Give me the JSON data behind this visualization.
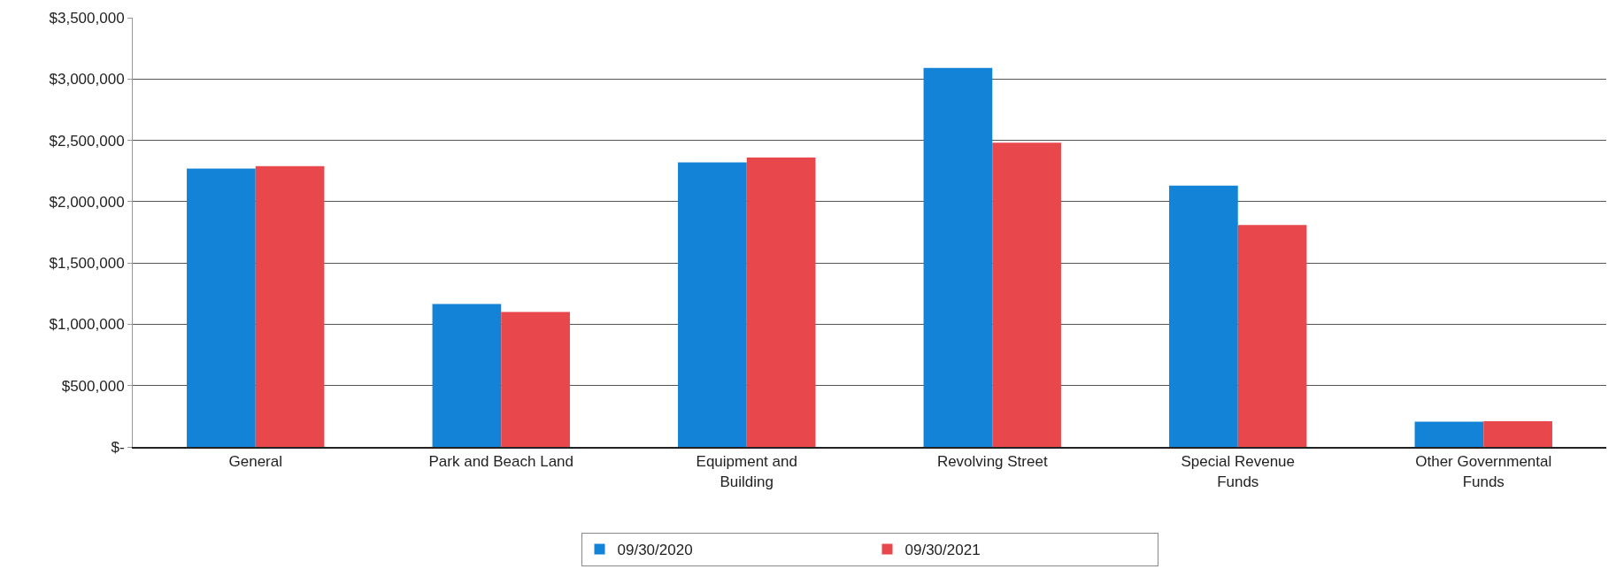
{
  "chart_data": {
    "type": "bar",
    "categories": [
      "General",
      "Park and Beach Land",
      "Equipment and\nBuilding",
      "Revolving Street",
      "Special Revenue\nFunds",
      "Other Governmental\nFunds"
    ],
    "series": [
      {
        "name": "09/30/2020",
        "color": "#1283d6",
        "values": [
          2270000,
          1165000,
          2320000,
          3090000,
          2130000,
          205000
        ]
      },
      {
        "name": "09/30/2021",
        "color": "#e8474c",
        "values": [
          2290000,
          1100000,
          2360000,
          2480000,
          1810000,
          210000
        ]
      }
    ],
    "ylim": [
      0,
      3500000
    ],
    "yticks": [
      {
        "value": 0,
        "label": "$-"
      },
      {
        "value": 500000,
        "label": "$500,000"
      },
      {
        "value": 1000000,
        "label": "$1,000,000"
      },
      {
        "value": 1500000,
        "label": "$1,500,000"
      },
      {
        "value": 2000000,
        "label": "$2,000,000"
      },
      {
        "value": 2500000,
        "label": "$2,500,000"
      },
      {
        "value": 3000000,
        "label": "$3,000,000"
      },
      {
        "value": 3500000,
        "label": "$3,500,000"
      }
    ],
    "grid": "y",
    "legend": "bottom"
  }
}
